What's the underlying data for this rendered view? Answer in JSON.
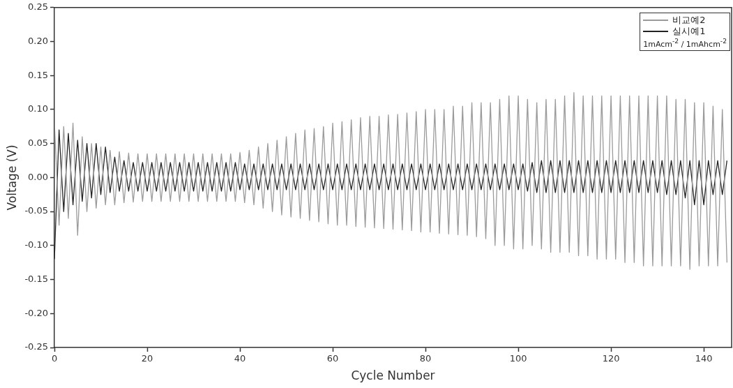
{
  "chart_data": {
    "type": "line",
    "xlabel": "Cycle Number",
    "ylabel": "Voltage (V)",
    "xlim": [
      0,
      146
    ],
    "xticks": [
      0,
      20,
      40,
      60,
      80,
      100,
      120,
      140
    ],
    "ylim": [
      -0.25,
      0.25
    ],
    "yticks": [
      {
        "value": -0.25,
        "label": "-0.25"
      },
      {
        "value": -0.2,
        "label": "-0.20"
      },
      {
        "value": -0.15,
        "label": "-0.15"
      },
      {
        "value": -0.1,
        "label": "-0.10"
      },
      {
        "value": -0.05,
        "label": "-0.05"
      },
      {
        "value": 0,
        "label": "0.00"
      },
      {
        "value": 0.05,
        "label": "0.05"
      },
      {
        "value": 0.1,
        "label": "0.10"
      },
      {
        "value": 0.15,
        "label": "0.15"
      },
      {
        "value": 0.2,
        "label": "0.20"
      },
      {
        "value": 0.25,
        "label": "0.25"
      }
    ],
    "grid": false,
    "legend": "top right",
    "marker": "none",
    "line_style": "solid",
    "annotations": [
      "1mAcm$^{-2}$ / 1mAhcm$^{-2}$"
    ],
    "x": [
      0,
      1,
      2,
      3,
      4,
      5,
      6,
      7,
      8,
      9,
      10,
      11,
      12,
      13,
      14,
      15,
      16,
      17,
      18,
      19,
      20,
      21,
      22,
      23,
      24,
      25,
      26,
      27,
      28,
      29,
      30,
      31,
      32,
      33,
      34,
      35,
      36,
      37,
      38,
      39,
      40,
      41,
      42,
      43,
      44,
      45,
      46,
      47,
      48,
      49,
      50,
      51,
      52,
      53,
      54,
      55,
      56,
      57,
      58,
      59,
      60,
      61,
      62,
      63,
      64,
      65,
      66,
      67,
      68,
      69,
      70,
      71,
      72,
      73,
      74,
      75,
      76,
      77,
      78,
      79,
      80,
      81,
      82,
      83,
      84,
      85,
      86,
      87,
      88,
      89,
      90,
      91,
      92,
      93,
      94,
      95,
      96,
      97,
      98,
      99,
      100,
      101,
      102,
      103,
      104,
      105,
      106,
      107,
      108,
      109,
      110,
      111,
      112,
      113,
      114,
      115,
      116,
      117,
      118,
      119,
      120,
      121,
      122,
      123,
      124,
      125,
      126,
      127,
      128,
      129,
      130,
      131,
      132,
      133,
      134,
      135,
      136,
      137,
      138,
      139,
      140,
      141,
      142,
      143,
      144,
      145
    ],
    "series": [
      {
        "name": "비교예2",
        "color": "#9a9a9a",
        "values": [
          0.08,
          -0.07,
          0.075,
          -0.06,
          0.08,
          -0.085,
          0.06,
          -0.05,
          0.05,
          -0.045,
          0.045,
          -0.04,
          0.04,
          -0.04,
          0.038,
          -0.037,
          0.036,
          -0.036,
          0.035,
          -0.035,
          0.035,
          -0.035,
          0.035,
          -0.035,
          0.035,
          -0.035,
          0.035,
          -0.035,
          0.035,
          -0.035,
          0.035,
          -0.035,
          0.035,
          -0.035,
          0.035,
          -0.035,
          0.035,
          -0.035,
          0.035,
          -0.035,
          0.037,
          -0.037,
          0.04,
          -0.04,
          0.045,
          -0.045,
          0.05,
          -0.05,
          0.055,
          -0.055,
          0.06,
          -0.058,
          0.065,
          -0.06,
          0.07,
          -0.063,
          0.072,
          -0.065,
          0.075,
          -0.068,
          0.08,
          -0.07,
          0.082,
          -0.07,
          0.085,
          -0.072,
          0.088,
          -0.073,
          0.09,
          -0.074,
          0.09,
          -0.075,
          0.092,
          -0.076,
          0.093,
          -0.077,
          0.095,
          -0.078,
          0.097,
          -0.08,
          0.1,
          -0.08,
          0.1,
          -0.082,
          0.1,
          -0.083,
          0.105,
          -0.084,
          0.105,
          -0.085,
          0.11,
          -0.087,
          0.11,
          -0.09,
          0.11,
          -0.1,
          0.115,
          -0.1,
          0.12,
          -0.105,
          0.12,
          -0.105,
          0.115,
          -0.1,
          0.11,
          -0.105,
          0.115,
          -0.11,
          0.115,
          -0.11,
          0.12,
          -0.11,
          0.125,
          -0.115,
          0.12,
          -0.115,
          0.12,
          -0.12,
          0.12,
          -0.12,
          0.12,
          -0.12,
          0.12,
          -0.125,
          0.12,
          -0.125,
          0.12,
          -0.13,
          0.12,
          -0.13,
          0.12,
          -0.13,
          0.12,
          -0.13,
          0.115,
          -0.13,
          0.115,
          -0.135,
          0.11,
          -0.13,
          0.11,
          -0.13,
          0.105,
          -0.13,
          0.1,
          -0.125
        ]
      },
      {
        "name": "실시예1",
        "color": "#222222",
        "values": [
          -0.12,
          0.07,
          -0.05,
          0.065,
          -0.04,
          0.055,
          -0.035,
          0.05,
          -0.03,
          0.05,
          -0.025,
          0.045,
          -0.022,
          0.03,
          -0.02,
          0.025,
          -0.02,
          0.022,
          -0.02,
          0.022,
          -0.02,
          0.022,
          -0.02,
          0.022,
          -0.02,
          0.022,
          -0.02,
          0.022,
          -0.02,
          0.022,
          -0.02,
          0.022,
          -0.02,
          0.022,
          -0.02,
          0.022,
          -0.02,
          0.022,
          -0.02,
          0.022,
          -0.018,
          0.02,
          -0.018,
          0.02,
          -0.018,
          0.02,
          -0.018,
          0.02,
          -0.018,
          0.02,
          -0.018,
          0.02,
          -0.018,
          0.02,
          -0.018,
          0.02,
          -0.018,
          0.02,
          -0.018,
          0.02,
          -0.018,
          0.02,
          -0.018,
          0.02,
          -0.018,
          0.02,
          -0.018,
          0.02,
          -0.018,
          0.02,
          -0.018,
          0.02,
          -0.018,
          0.02,
          -0.018,
          0.02,
          -0.018,
          0.02,
          -0.018,
          0.02,
          -0.018,
          0.02,
          -0.018,
          0.02,
          -0.018,
          0.02,
          -0.018,
          0.02,
          -0.018,
          0.02,
          -0.018,
          0.02,
          -0.018,
          0.02,
          -0.018,
          0.02,
          -0.018,
          0.02,
          -0.018,
          0.02,
          -0.018,
          0.02,
          -0.02,
          0.022,
          -0.022,
          0.025,
          -0.022,
          0.025,
          -0.022,
          0.025,
          -0.022,
          0.025,
          -0.022,
          0.025,
          -0.022,
          0.025,
          -0.022,
          0.025,
          -0.022,
          0.025,
          -0.022,
          0.025,
          -0.022,
          0.025,
          -0.022,
          0.025,
          -0.022,
          0.025,
          -0.022,
          0.025,
          -0.022,
          0.025,
          -0.025,
          0.025,
          -0.025,
          0.025,
          -0.03,
          0.025,
          -0.04,
          0.025,
          -0.04,
          0.025,
          -0.025,
          0.025,
          -0.025,
          0.025
        ]
      }
    ]
  }
}
